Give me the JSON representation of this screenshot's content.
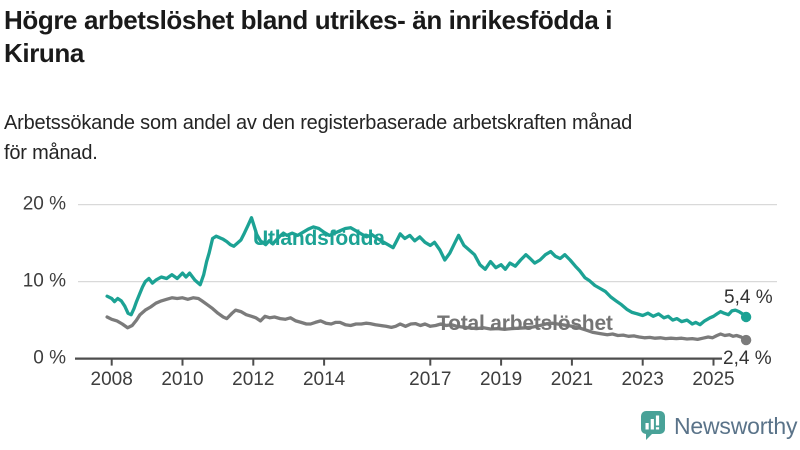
{
  "header": {
    "title_lines": [
      "Högre arbetslöshet bland utrikes- än inrikesfödda i",
      "Kiruna"
    ],
    "subtitle_lines": [
      "Arbetssökande som andel av den registerbaserade arbetskraften månad",
      "för månad."
    ]
  },
  "chart_data": {
    "type": "line",
    "title": "Högre arbetslöshet bland utrikes- än inrikesfödda i Kiruna",
    "subtitle": "Arbetssökande som andel av den registerbaserade arbetskraften månad för månad.",
    "x_unit": "year (monthly data)",
    "x_range": [
      2007.87,
      2025.92
    ],
    "ylim": [
      0,
      20
    ],
    "grid": "horizontal",
    "legend_position": "inline-labels",
    "colors": {
      "axis": "#4d4d4d",
      "grid": "#d9d9d9",
      "tick_text": "#3e3e3e"
    },
    "yticks": [
      {
        "value": 0,
        "label": "0 %"
      },
      {
        "value": 10,
        "label": "10 %"
      },
      {
        "value": 20,
        "label": "20 %"
      }
    ],
    "xticks": [
      {
        "value": 2008,
        "label": "2008"
      },
      {
        "value": 2010,
        "label": "2010"
      },
      {
        "value": 2012,
        "label": "2012"
      },
      {
        "value": 2014,
        "label": "2014"
      },
      {
        "value": 2017,
        "label": "2017"
      },
      {
        "value": 2019,
        "label": "2019"
      },
      {
        "value": 2021,
        "label": "2021"
      },
      {
        "value": 2023,
        "label": "2023"
      },
      {
        "value": 2025,
        "label": "2025"
      }
    ],
    "series": [
      {
        "name": "Utlandsfödda",
        "color": "#1CA294",
        "end_label": "5,4 %",
        "end_value": 5.4,
        "points": [
          [
            2007.87,
            8.1
          ],
          [
            2008.0,
            7.8
          ],
          [
            2008.08,
            7.4
          ],
          [
            2008.17,
            7.8
          ],
          [
            2008.27,
            7.5
          ],
          [
            2008.37,
            6.8
          ],
          [
            2008.46,
            5.9
          ],
          [
            2008.55,
            5.7
          ],
          [
            2008.63,
            6.5
          ],
          [
            2008.7,
            7.4
          ],
          [
            2008.78,
            8.3
          ],
          [
            2008.87,
            9.3
          ],
          [
            2008.95,
            10.0
          ],
          [
            2009.05,
            10.4
          ],
          [
            2009.15,
            9.8
          ],
          [
            2009.25,
            10.2
          ],
          [
            2009.4,
            10.6
          ],
          [
            2009.55,
            10.4
          ],
          [
            2009.7,
            10.9
          ],
          [
            2009.85,
            10.4
          ],
          [
            2010.0,
            11.1
          ],
          [
            2010.1,
            10.6
          ],
          [
            2010.2,
            11.1
          ],
          [
            2010.35,
            10.2
          ],
          [
            2010.5,
            9.6
          ],
          [
            2010.6,
            10.9
          ],
          [
            2010.68,
            12.6
          ],
          [
            2010.75,
            13.7
          ],
          [
            2010.85,
            15.6
          ],
          [
            2010.95,
            15.9
          ],
          [
            2011.05,
            15.7
          ],
          [
            2011.15,
            15.5
          ],
          [
            2011.25,
            15.2
          ],
          [
            2011.35,
            14.8
          ],
          [
            2011.45,
            14.6
          ],
          [
            2011.55,
            15.0
          ],
          [
            2011.65,
            15.4
          ],
          [
            2011.75,
            16.3
          ],
          [
            2011.85,
            17.3
          ],
          [
            2011.95,
            18.3
          ],
          [
            2012.1,
            16.1
          ],
          [
            2012.2,
            15.3
          ],
          [
            2012.35,
            14.8
          ],
          [
            2012.45,
            15.3
          ],
          [
            2012.55,
            14.9
          ],
          [
            2012.65,
            15.4
          ],
          [
            2012.75,
            15.9
          ],
          [
            2012.85,
            16.3
          ],
          [
            2012.95,
            16.0
          ],
          [
            2013.1,
            16.3
          ],
          [
            2013.25,
            16.0
          ],
          [
            2013.4,
            16.4
          ],
          [
            2013.55,
            16.8
          ],
          [
            2013.7,
            17.1
          ],
          [
            2013.85,
            16.9
          ],
          [
            2014.0,
            16.4
          ],
          [
            2014.15,
            16.0
          ],
          [
            2014.3,
            16.3
          ],
          [
            2014.45,
            16.6
          ],
          [
            2014.6,
            16.9
          ],
          [
            2014.75,
            17.0
          ],
          [
            2014.9,
            16.6
          ],
          [
            2015.05,
            16.2
          ],
          [
            2015.2,
            15.8
          ],
          [
            2015.35,
            16.1
          ],
          [
            2015.5,
            15.6
          ],
          [
            2015.65,
            15.2
          ],
          [
            2015.8,
            14.8
          ],
          [
            2015.95,
            14.4
          ],
          [
            2016.05,
            15.3
          ],
          [
            2016.15,
            16.2
          ],
          [
            2016.28,
            15.6
          ],
          [
            2016.42,
            16.0
          ],
          [
            2016.56,
            15.3
          ],
          [
            2016.7,
            15.8
          ],
          [
            2016.85,
            15.1
          ],
          [
            2017.0,
            14.7
          ],
          [
            2017.12,
            15.1
          ],
          [
            2017.27,
            14.1
          ],
          [
            2017.41,
            12.8
          ],
          [
            2017.55,
            13.7
          ],
          [
            2017.7,
            15.1
          ],
          [
            2017.8,
            16.0
          ],
          [
            2017.95,
            14.7
          ],
          [
            2018.1,
            14.1
          ],
          [
            2018.25,
            13.5
          ],
          [
            2018.4,
            12.2
          ],
          [
            2018.55,
            11.6
          ],
          [
            2018.7,
            12.6
          ],
          [
            2018.85,
            11.8
          ],
          [
            2019.0,
            12.2
          ],
          [
            2019.12,
            11.6
          ],
          [
            2019.25,
            12.4
          ],
          [
            2019.4,
            12.0
          ],
          [
            2019.55,
            12.8
          ],
          [
            2019.7,
            13.5
          ],
          [
            2019.82,
            13.0
          ],
          [
            2019.95,
            12.4
          ],
          [
            2020.1,
            12.8
          ],
          [
            2020.25,
            13.5
          ],
          [
            2020.4,
            13.9
          ],
          [
            2020.53,
            13.3
          ],
          [
            2020.67,
            13.0
          ],
          [
            2020.8,
            13.5
          ],
          [
            2020.95,
            12.8
          ],
          [
            2021.1,
            12.0
          ],
          [
            2021.22,
            11.4
          ],
          [
            2021.37,
            10.5
          ],
          [
            2021.5,
            10.1
          ],
          [
            2021.65,
            9.5
          ],
          [
            2021.8,
            9.1
          ],
          [
            2021.95,
            8.7
          ],
          [
            2022.1,
            8.0
          ],
          [
            2022.25,
            7.5
          ],
          [
            2022.4,
            7.0
          ],
          [
            2022.55,
            6.4
          ],
          [
            2022.7,
            6.0
          ],
          [
            2022.85,
            5.8
          ],
          [
            2023.0,
            5.6
          ],
          [
            2023.15,
            5.9
          ],
          [
            2023.3,
            5.5
          ],
          [
            2023.45,
            5.8
          ],
          [
            2023.6,
            5.3
          ],
          [
            2023.72,
            5.5
          ],
          [
            2023.85,
            5.0
          ],
          [
            2023.97,
            5.2
          ],
          [
            2024.1,
            4.8
          ],
          [
            2024.25,
            5.0
          ],
          [
            2024.4,
            4.5
          ],
          [
            2024.5,
            4.7
          ],
          [
            2024.62,
            4.4
          ],
          [
            2024.75,
            4.9
          ],
          [
            2024.9,
            5.3
          ],
          [
            2025.0,
            5.5
          ],
          [
            2025.1,
            5.8
          ],
          [
            2025.2,
            6.1
          ],
          [
            2025.3,
            5.9
          ],
          [
            2025.42,
            5.7
          ],
          [
            2025.52,
            6.2
          ],
          [
            2025.62,
            6.3
          ],
          [
            2025.72,
            6.1
          ],
          [
            2025.82,
            5.8
          ],
          [
            2025.92,
            5.4
          ]
        ]
      },
      {
        "name": "Total arbetslöshet",
        "color": "#7b7b7b",
        "end_label": "2,4 %",
        "end_value": 2.4,
        "points": [
          [
            2007.87,
            5.4
          ],
          [
            2008.0,
            5.1
          ],
          [
            2008.15,
            4.9
          ],
          [
            2008.3,
            4.5
          ],
          [
            2008.45,
            4.0
          ],
          [
            2008.58,
            4.3
          ],
          [
            2008.7,
            5.0
          ],
          [
            2008.8,
            5.7
          ],
          [
            2008.95,
            6.3
          ],
          [
            2009.1,
            6.7
          ],
          [
            2009.25,
            7.2
          ],
          [
            2009.4,
            7.5
          ],
          [
            2009.55,
            7.7
          ],
          [
            2009.7,
            7.9
          ],
          [
            2009.85,
            7.8
          ],
          [
            2010.0,
            7.9
          ],
          [
            2010.15,
            7.7
          ],
          [
            2010.3,
            7.9
          ],
          [
            2010.45,
            7.8
          ],
          [
            2010.55,
            7.5
          ],
          [
            2010.7,
            7.0
          ],
          [
            2010.85,
            6.5
          ],
          [
            2011.0,
            5.9
          ],
          [
            2011.15,
            5.4
          ],
          [
            2011.25,
            5.2
          ],
          [
            2011.4,
            5.9
          ],
          [
            2011.5,
            6.3
          ],
          [
            2011.65,
            6.1
          ],
          [
            2011.8,
            5.7
          ],
          [
            2011.95,
            5.5
          ],
          [
            2012.07,
            5.3
          ],
          [
            2012.2,
            4.9
          ],
          [
            2012.33,
            5.5
          ],
          [
            2012.47,
            5.3
          ],
          [
            2012.6,
            5.4
          ],
          [
            2012.76,
            5.2
          ],
          [
            2012.9,
            5.1
          ],
          [
            2013.05,
            5.3
          ],
          [
            2013.2,
            4.9
          ],
          [
            2013.35,
            4.7
          ],
          [
            2013.5,
            4.5
          ],
          [
            2013.62,
            4.5
          ],
          [
            2013.75,
            4.7
          ],
          [
            2013.9,
            4.9
          ],
          [
            2014.05,
            4.6
          ],
          [
            2014.2,
            4.5
          ],
          [
            2014.32,
            4.7
          ],
          [
            2014.45,
            4.7
          ],
          [
            2014.6,
            4.4
          ],
          [
            2014.75,
            4.3
          ],
          [
            2014.9,
            4.5
          ],
          [
            2015.05,
            4.5
          ],
          [
            2015.18,
            4.6
          ],
          [
            2015.3,
            4.55
          ],
          [
            2015.45,
            4.4
          ],
          [
            2015.6,
            4.3
          ],
          [
            2015.75,
            4.2
          ],
          [
            2015.9,
            4.05
          ],
          [
            2016.02,
            4.2
          ],
          [
            2016.15,
            4.5
          ],
          [
            2016.3,
            4.2
          ],
          [
            2016.45,
            4.5
          ],
          [
            2016.58,
            4.55
          ],
          [
            2016.72,
            4.3
          ],
          [
            2016.85,
            4.5
          ],
          [
            2017.0,
            4.2
          ],
          [
            2017.15,
            4.3
          ],
          [
            2017.3,
            4.5
          ],
          [
            2017.45,
            4.3
          ],
          [
            2017.6,
            4.4
          ],
          [
            2017.75,
            4.2
          ],
          [
            2017.9,
            4.1
          ],
          [
            2018.1,
            4.0
          ],
          [
            2018.3,
            3.9
          ],
          [
            2018.5,
            4.0
          ],
          [
            2018.7,
            3.85
          ],
          [
            2018.9,
            3.9
          ],
          [
            2019.1,
            3.8
          ],
          [
            2019.3,
            3.9
          ],
          [
            2019.5,
            3.95
          ],
          [
            2019.7,
            4.0
          ],
          [
            2019.9,
            4.1
          ],
          [
            2020.1,
            4.3
          ],
          [
            2020.3,
            4.55
          ],
          [
            2020.45,
            4.6
          ],
          [
            2020.6,
            4.5
          ],
          [
            2020.8,
            4.35
          ],
          [
            2021.0,
            4.2
          ],
          [
            2021.2,
            4.0
          ],
          [
            2021.4,
            3.7
          ],
          [
            2021.6,
            3.4
          ],
          [
            2021.8,
            3.25
          ],
          [
            2022.0,
            3.1
          ],
          [
            2022.15,
            3.2
          ],
          [
            2022.3,
            3.0
          ],
          [
            2022.45,
            3.05
          ],
          [
            2022.6,
            2.9
          ],
          [
            2022.75,
            2.95
          ],
          [
            2022.9,
            2.8
          ],
          [
            2023.05,
            2.7
          ],
          [
            2023.2,
            2.75
          ],
          [
            2023.35,
            2.65
          ],
          [
            2023.5,
            2.7
          ],
          [
            2023.65,
            2.6
          ],
          [
            2023.8,
            2.65
          ],
          [
            2023.95,
            2.6
          ],
          [
            2024.1,
            2.65
          ],
          [
            2024.25,
            2.55
          ],
          [
            2024.4,
            2.6
          ],
          [
            2024.55,
            2.5
          ],
          [
            2024.7,
            2.65
          ],
          [
            2024.85,
            2.8
          ],
          [
            2024.97,
            2.7
          ],
          [
            2025.1,
            3.0
          ],
          [
            2025.2,
            3.2
          ],
          [
            2025.32,
            3.0
          ],
          [
            2025.45,
            3.1
          ],
          [
            2025.55,
            2.9
          ],
          [
            2025.65,
            3.0
          ],
          [
            2025.78,
            2.8
          ],
          [
            2025.92,
            2.4
          ]
        ]
      }
    ]
  },
  "footer": {
    "brand": "Newsworthy"
  }
}
